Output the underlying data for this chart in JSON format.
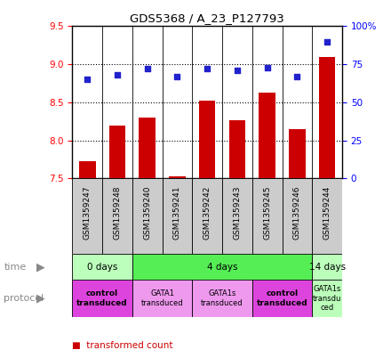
{
  "title": "GDS5368 / A_23_P127793",
  "samples": [
    "GSM1359247",
    "GSM1359248",
    "GSM1359240",
    "GSM1359241",
    "GSM1359242",
    "GSM1359243",
    "GSM1359245",
    "GSM1359246",
    "GSM1359244"
  ],
  "transformed_count": [
    7.73,
    8.2,
    8.3,
    7.53,
    8.52,
    8.27,
    8.63,
    8.15,
    9.1
  ],
  "percentile_rank": [
    65,
    68,
    72,
    67,
    72,
    71,
    73,
    67,
    90
  ],
  "ylim_left": [
    7.5,
    9.5
  ],
  "ylim_right": [
    0,
    100
  ],
  "yticks_left": [
    7.5,
    8.0,
    8.5,
    9.0,
    9.5
  ],
  "yticks_right": [
    0,
    25,
    50,
    75,
    100
  ],
  "ytick_labels_right": [
    "0",
    "25",
    "50",
    "75",
    "100%"
  ],
  "bar_color": "#cc0000",
  "dot_color": "#2222cc",
  "time_groups": [
    {
      "label": "0 days",
      "start": 0,
      "end": 2,
      "color": "#bbffbb"
    },
    {
      "label": "4 days",
      "start": 2,
      "end": 8,
      "color": "#55ee55"
    },
    {
      "label": "14 days",
      "start": 8,
      "end": 9,
      "color": "#bbffbb"
    }
  ],
  "protocol_groups": [
    {
      "label": "control\ntransduced",
      "start": 0,
      "end": 2,
      "color": "#dd44dd",
      "bold": true
    },
    {
      "label": "GATA1\ntransduced",
      "start": 2,
      "end": 4,
      "color": "#ee99ee",
      "bold": false
    },
    {
      "label": "GATA1s\ntransduced",
      "start": 4,
      "end": 6,
      "color": "#ee99ee",
      "bold": false
    },
    {
      "label": "control\ntransduced",
      "start": 6,
      "end": 8,
      "color": "#dd44dd",
      "bold": true
    },
    {
      "label": "GATA1s\ntransdu\nced",
      "start": 8,
      "end": 9,
      "color": "#bbffbb",
      "bold": false
    }
  ],
  "sample_box_color": "#cccccc",
  "bg_color": "#ffffff"
}
